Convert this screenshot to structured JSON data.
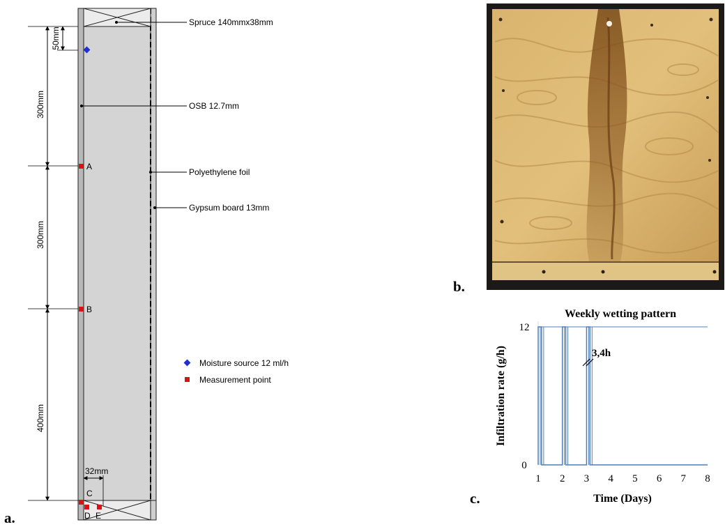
{
  "panel_a": {
    "letter": "a.",
    "labels": {
      "spruce": "Spruce 140mmx38mm",
      "osb": "OSB 12.7mm",
      "poly": "Polyethylene foil",
      "gypsum": "Gypsum board 13mm"
    },
    "dimensions": {
      "d50": "50mm",
      "d300a": "300mm",
      "d300b": "300mm",
      "d400": "400mm",
      "d32": "32mm"
    },
    "points": {
      "A": "A",
      "B": "B",
      "C": "C",
      "D": "D",
      "E": "E"
    },
    "legend": {
      "moisture": "Moisture source 12 ml/h",
      "measurement": "Measurement point"
    },
    "colors": {
      "moisture": "#1f2fd0",
      "measurement": "#dd1111",
      "cavity": "#d4d4d4",
      "stud": "#ececec",
      "board": "#b8b8b8"
    }
  },
  "panel_b": {
    "letter": "b.",
    "colors": {
      "wood": "#d8b068",
      "stain": "#8a5820",
      "frame": "#1c1a18"
    }
  },
  "panel_c": {
    "letter": "c.",
    "annotation": "3,4h",
    "chart_data": {
      "type": "line",
      "title": "Weekly wetting pattern",
      "xlabel": "Time (Days)",
      "ylabel": "Infiltration rate (g/h)",
      "xlim": [
        1,
        8
      ],
      "ylim": [
        0,
        12
      ],
      "xticks": [
        "1",
        "2",
        "3",
        "4",
        "5",
        "6",
        "7",
        "8"
      ],
      "yticks": [
        "0",
        "12"
      ],
      "series": [
        {
          "color": "#4f7fb5",
          "x": [
            1.0,
            1.0,
            1.14,
            1.14,
            2.0,
            2.0,
            2.14,
            2.14,
            3.0,
            3.0,
            3.14,
            3.14,
            8.0
          ],
          "y": [
            0,
            12,
            12,
            0,
            0,
            12,
            12,
            0,
            0,
            12,
            12,
            0,
            0
          ]
        }
      ]
    }
  }
}
